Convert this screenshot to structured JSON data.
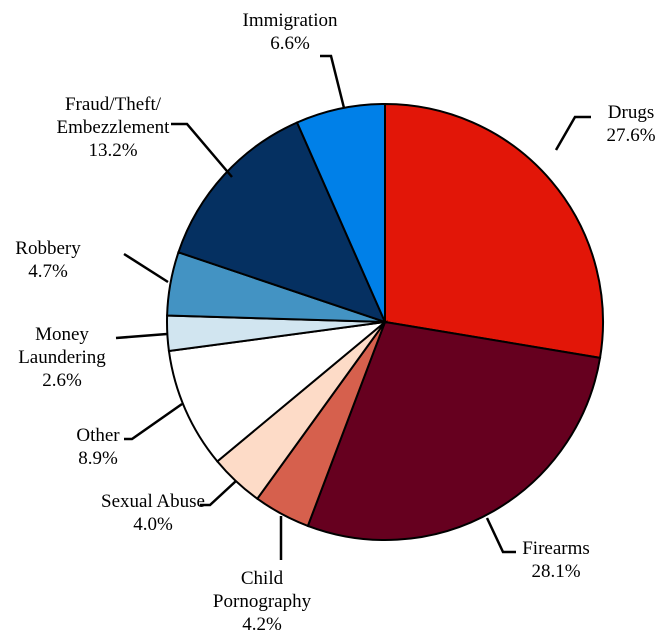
{
  "chart_data": {
    "type": "pie",
    "title": "",
    "slices": [
      {
        "name": "Drugs",
        "label_lines": [
          "Drugs"
        ],
        "value": 27.6,
        "value_label": "27.6%",
        "color": "#e21608"
      },
      {
        "name": "Firearms",
        "label_lines": [
          "Firearms"
        ],
        "value": 28.1,
        "value_label": "28.1%",
        "color": "#66001f"
      },
      {
        "name": "Child Pornography",
        "label_lines": [
          "Child",
          "Pornography"
        ],
        "value": 4.2,
        "value_label": "4.2%",
        "color": "#d6604d"
      },
      {
        "name": "Sexual Abuse",
        "label_lines": [
          "Sexual Abuse"
        ],
        "value": 4.0,
        "value_label": "4.0%",
        "color": "#fddbc7"
      },
      {
        "name": "Other",
        "label_lines": [
          "Other"
        ],
        "value": 8.9,
        "value_label": "8.9%",
        "color": "#ffffff"
      },
      {
        "name": "Money Laundering",
        "label_lines": [
          "Money",
          "Laundering"
        ],
        "value": 2.6,
        "value_label": "2.6%",
        "color": "#d1e5f0"
      },
      {
        "name": "Robbery",
        "label_lines": [
          "Robbery"
        ],
        "value": 4.7,
        "value_label": "4.7%",
        "color": "#4393c3"
      },
      {
        "name": "Fraud/Theft/Embezzlement",
        "label_lines": [
          "Fraud/Theft/",
          "Embezzlement"
        ],
        "value": 13.2,
        "value_label": "13.2%",
        "color": "#053061"
      },
      {
        "name": "Immigration",
        "label_lines": [
          "Immigration"
        ],
        "value": 6.6,
        "value_label": "6.6%",
        "color": "#0080e8"
      }
    ],
    "start_angle_deg": 0,
    "direction": "clockwise"
  }
}
